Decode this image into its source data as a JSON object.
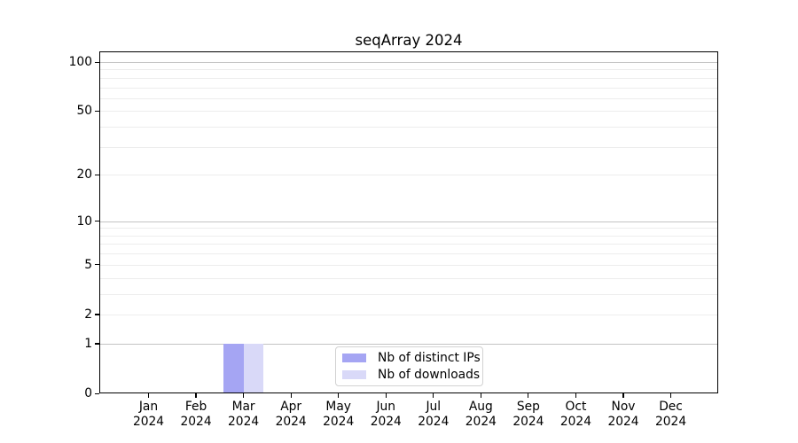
{
  "title": "seqArray 2024",
  "chart_data": {
    "type": "bar",
    "title": "seqArray 2024",
    "categories": [
      "Jan",
      "Feb",
      "Mar",
      "Apr",
      "May",
      "Jun",
      "Jul",
      "Aug",
      "Sep",
      "Oct",
      "Nov",
      "Dec"
    ],
    "year": "2024",
    "series": [
      {
        "name": "Nb of distinct IPs",
        "color": "#a5a5f3",
        "values": [
          0,
          0,
          1,
          0,
          0,
          0,
          0,
          0,
          0,
          0,
          0,
          0
        ]
      },
      {
        "name": "Nb of downloads",
        "color": "#d9d9f8",
        "values": [
          0,
          0,
          1,
          0,
          0,
          0,
          0,
          0,
          0,
          0,
          0,
          0
        ]
      }
    ],
    "xlabel": "",
    "ylabel": "",
    "yscale": "log1p",
    "ylim": [
      0,
      117
    ],
    "y_labeled_ticks": [
      0,
      1,
      2,
      5,
      10,
      20,
      50,
      100
    ],
    "y_major_gridlines": [
      1,
      10,
      100
    ],
    "y_minor_gridlines": [
      2,
      3,
      4,
      5,
      6,
      7,
      8,
      9,
      20,
      30,
      40,
      50,
      60,
      70,
      80,
      90
    ],
    "grid": "horizontal",
    "legend_position": "bottom-center-inside"
  },
  "colors": {
    "background": "#ffffff",
    "axis": "#000000",
    "grid_major": "#c3c3c3",
    "grid_minor": "#ededed",
    "bar_distinct_ips": "#a5a5f3",
    "bar_downloads": "#d9d9f8",
    "legend_border": "#d2d2d2",
    "text": "#000000"
  }
}
